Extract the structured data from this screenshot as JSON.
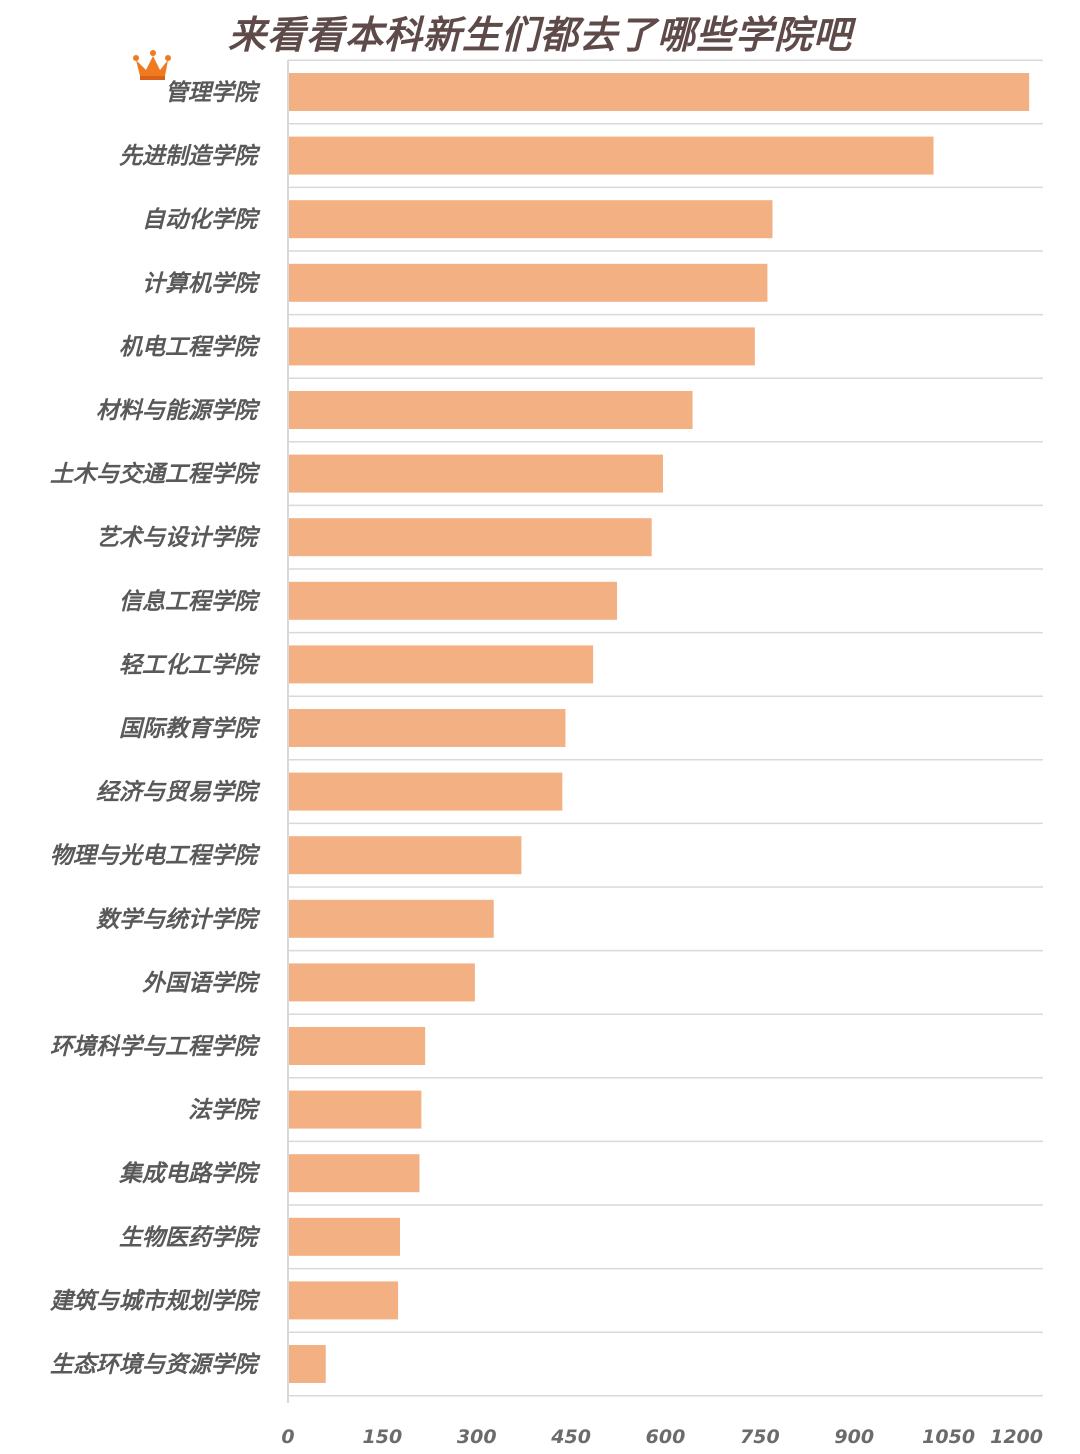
{
  "colors": {
    "bar": "#f2b083",
    "grid": "#d9d9d9",
    "crown": "#f07a1e",
    "title": "#5e4a48"
  },
  "icons": {
    "top_rank": "crown-icon"
  },
  "chart_data": {
    "type": "bar",
    "orientation": "horizontal",
    "title": "来看看本科新生们都去了哪些学院吧",
    "xlabel": "",
    "ylabel": "",
    "xlim": [
      0,
      1200
    ],
    "xticks": [
      0,
      150,
      300,
      450,
      600,
      750,
      900,
      1050,
      1200
    ],
    "grid": true,
    "categories": [
      "管理学院",
      "先进制造学院",
      "自动化学院",
      "计算机学院",
      "机电工程学院",
      "材料与能源学院",
      "土木与交通工程学院",
      "艺术与设计学院",
      "信息工程学院",
      "轻工化工学院",
      "国际教育学院",
      "经济与贸易学院",
      "物理与光电工程学院",
      "数学与统计学院",
      "外国语学院",
      "环境科学与工程学院",
      "法学院",
      "集成电路学院",
      "生物医药学院",
      "建筑与城市规划学院",
      "生态环境与资源学院"
    ],
    "values": [
      1178,
      1026,
      770,
      762,
      742,
      643,
      596,
      578,
      523,
      485,
      441,
      436,
      371,
      327,
      297,
      218,
      212,
      209,
      178,
      175,
      60
    ]
  }
}
